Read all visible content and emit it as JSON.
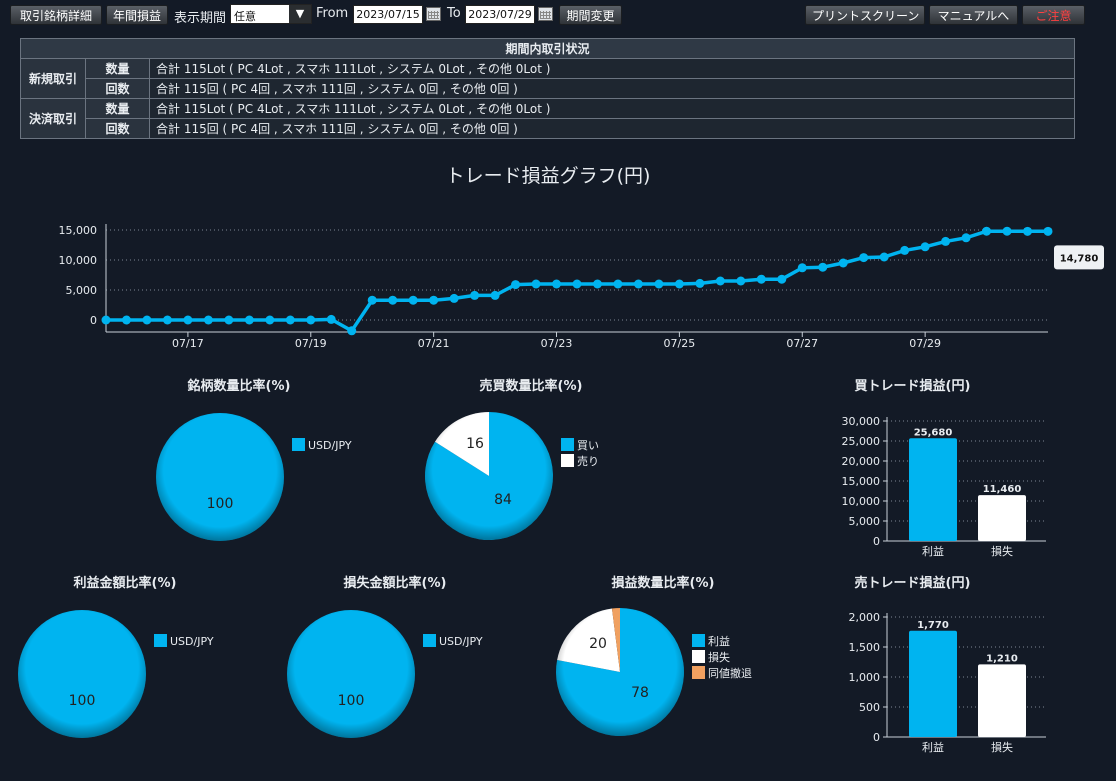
{
  "toolbar": {
    "detail_btn": "取引銘柄詳細",
    "annual_btn": "年間損益",
    "period_label": "表示期間",
    "period_select": "任意",
    "from_label": "From",
    "from_date": "2023/07/15",
    "to_label": "To",
    "to_date": "2023/07/29",
    "change_btn": "期間変更",
    "print_btn": "プリントスクリーン",
    "manual_btn": "マニュアルへ",
    "warn_btn": "ご注意"
  },
  "summary": {
    "title": "期間内取引状況",
    "rows": [
      {
        "group": "新規取引",
        "sub": "数量",
        "text": "合計 115Lot ( PC 4Lot , スマホ 111Lot , システム 0Lot , その他 0Lot )"
      },
      {
        "group": "",
        "sub": "回数",
        "text": "合計 115回 ( PC 4回 , スマホ 111回 , システム 0回 , その他 0回 )"
      },
      {
        "group": "決済取引",
        "sub": "数量",
        "text": "合計 115Lot ( PC 4Lot , スマホ 111Lot , システム 0Lot , その他 0Lot )"
      },
      {
        "group": "",
        "sub": "回数",
        "text": "合計 115回 ( PC 4回 , スマホ 111回 , システム 0回 , その他 0回 )"
      }
    ]
  },
  "colors": {
    "accent": "#00b4f0",
    "white": "#ffffff",
    "orange": "#f0a060",
    "bg": "#131a26"
  },
  "chart_data": [
    {
      "type": "line",
      "title": "トレード損益グラフ(円)",
      "x_ticks": [
        "07/17",
        "07/19",
        "07/21",
        "07/23",
        "07/25",
        "07/27",
        "07/29"
      ],
      "y_ticks": [
        "15,000",
        "10,000",
        "5,000",
        "0"
      ],
      "ylim": [
        -2000,
        15000
      ],
      "last_value_label": "14,780",
      "values": [
        0,
        0,
        0,
        0,
        0,
        0,
        0,
        0,
        0,
        0,
        0,
        100,
        -1800,
        3300,
        3300,
        3300,
        3300,
        3600,
        4100,
        4100,
        5900,
        6000,
        6000,
        6000,
        6000,
        6000,
        6000,
        6000,
        6000,
        6100,
        6500,
        6500,
        6800,
        6800,
        8700,
        8800,
        9500,
        10400,
        10500,
        11600,
        12200,
        13100,
        13700,
        14800,
        14800,
        14780,
        14780
      ]
    },
    {
      "type": "pie",
      "title": "銘柄数量比率(%)",
      "slices": [
        {
          "label": "USD/JPY",
          "value": 100,
          "color": "#00b4f0"
        }
      ]
    },
    {
      "type": "pie",
      "title": "売買数量比率(%)",
      "slices": [
        {
          "label": "買い",
          "value": 84,
          "color": "#00b4f0"
        },
        {
          "label": "売り",
          "value": 16,
          "color": "#ffffff"
        }
      ]
    },
    {
      "type": "bar",
      "title": "買トレード損益(円)",
      "categories": [
        "利益",
        "損失"
      ],
      "values": [
        25680,
        11460
      ],
      "value_labels": [
        "25,680",
        "11,460"
      ],
      "ylim": [
        0,
        30000
      ],
      "y_ticks": [
        "30,000",
        "25,000",
        "20,000",
        "15,000",
        "10,000",
        "5,000",
        "0"
      ]
    },
    {
      "type": "pie",
      "title": "利益金額比率(%)",
      "slices": [
        {
          "label": "USD/JPY",
          "value": 100,
          "color": "#00b4f0"
        }
      ]
    },
    {
      "type": "pie",
      "title": "損失金額比率(%)",
      "slices": [
        {
          "label": "USD/JPY",
          "value": 100,
          "color": "#00b4f0"
        }
      ]
    },
    {
      "type": "pie",
      "title": "損益数量比率(%)",
      "slices": [
        {
          "label": "利益",
          "value": 78,
          "color": "#00b4f0"
        },
        {
          "label": "損失",
          "value": 20,
          "color": "#ffffff"
        },
        {
          "label": "同値撤退",
          "value": 2,
          "color": "#f0a060"
        }
      ]
    },
    {
      "type": "bar",
      "title": "売トレード損益(円)",
      "categories": [
        "利益",
        "損失"
      ],
      "values": [
        1770,
        1210
      ],
      "value_labels": [
        "1,770",
        "1,210"
      ],
      "ylim": [
        0,
        2000
      ],
      "y_ticks": [
        "2,000",
        "1,500",
        "1,000",
        "500",
        "0"
      ]
    }
  ]
}
